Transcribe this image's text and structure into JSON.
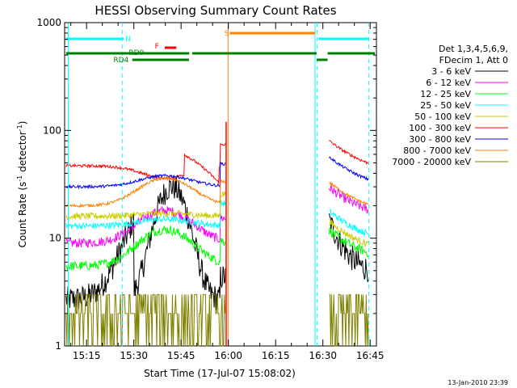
{
  "chart_data": {
    "type": "line",
    "title": "HESSI Observing Summary Count Rates",
    "xlabel": "Start Time (17-Jul-07 15:08:02)",
    "ylabel_main": "Count Rate (s",
    "ylabel_sup1": "-1",
    "ylabel_mid": " detector",
    "ylabel_sup2": "-1",
    "ylabel_end": ")",
    "y_scale": "log",
    "ylim": [
      1,
      1000
    ],
    "xlim": [
      "15:08:02",
      "16:47:00"
    ],
    "x_tick_labels": [
      "15:15",
      "15:30",
      "15:45",
      "16:00",
      "16:15",
      "16:30",
      "16:45"
    ],
    "x_tick_minutes": [
      915,
      930,
      945,
      960,
      975,
      990,
      1005
    ],
    "y_tick_labels": [
      "1",
      "10",
      "100",
      "1000"
    ],
    "y_tick_values": [
      1,
      10,
      100,
      1000
    ],
    "stamp": "13-Jan-2010 23:39",
    "legend": {
      "header1": "Det 1,3,4,5,6,9,",
      "header2": "FDecim 1, Att 0",
      "position": "right"
    },
    "series": [
      {
        "name": "3 - 6 keV",
        "color": "#000000"
      },
      {
        "name": "6 - 12 keV",
        "color": "#ff00ff"
      },
      {
        "name": "12 - 25 keV",
        "color": "#00ff00"
      },
      {
        "name": "25 - 50 keV",
        "color": "#00ffff"
      },
      {
        "name": "50 - 100 keV",
        "color": "#cccc00"
      },
      {
        "name": "100 - 300 keV",
        "color": "#ff0000"
      },
      {
        "name": "300 - 800 keV",
        "color": "#0000ff"
      },
      {
        "name": "800 - 7000 keV",
        "color": "#ff7f00"
      },
      {
        "name": "7000 - 20000 keV",
        "color": "#808000"
      }
    ],
    "flags": [
      {
        "label": "N",
        "color": "#00ffff"
      },
      {
        "label": "S",
        "color": "#ff7f00"
      },
      {
        "label": "F",
        "color": "#ff0000"
      },
      {
        "label": "RD0",
        "color": "#008000"
      },
      {
        "label": "RD4",
        "color": "#008000"
      }
    ]
  }
}
